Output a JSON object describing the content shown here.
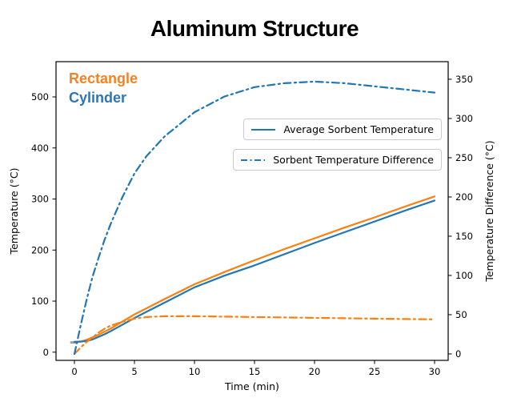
{
  "title": "Aluminum Structure",
  "annotations": {
    "rectangle": {
      "label": "Rectangle",
      "color": "#f58220"
    },
    "cylinder": {
      "label": "Cylinder",
      "color": "#2e75b6"
    }
  },
  "legend": {
    "items": [
      {
        "label": "Average Sorbent Temperature",
        "line_style": "solid",
        "color": "#1f77b4"
      },
      {
        "label": "Sorbent Temperature Difference",
        "line_style": "dashdot",
        "color": "#1f77b4"
      }
    ]
  },
  "chart_data": {
    "type": "line",
    "title": "Aluminum Structure",
    "xlabel": "Time (min)",
    "ylabel_left": "Temperature (°C)",
    "ylabel_right": "Temperature Difference (°C)",
    "x_ticks": [
      0,
      5,
      10,
      15,
      20,
      25,
      30
    ],
    "y_left_ticks": [
      0,
      100,
      200,
      300,
      400,
      500
    ],
    "y_right_ticks": [
      0,
      50,
      100,
      150,
      200,
      250,
      300,
      350
    ],
    "xlim": [
      -1.533,
      31.133
    ],
    "ylim_left": [
      -16,
      569
    ],
    "ylim_right": [
      -8.2,
      372.4
    ],
    "grid": false,
    "legend_position": "upper right area, two separate boxes",
    "x": [
      0,
      0.5,
      1,
      1.5,
      2,
      2.5,
      3,
      4,
      5,
      6,
      7.5,
      10,
      12.5,
      15,
      17.5,
      20,
      22.5,
      25,
      27.5,
      30
    ],
    "series": [
      {
        "name": "Rectangle Average Sorbent Temperature",
        "axis": "left",
        "style": "solid",
        "color": "#ff7f0e",
        "values": [
          20,
          21,
          24,
          29,
          34,
          40,
          46,
          60,
          74,
          86,
          104,
          133,
          157,
          180,
          202,
          223,
          244,
          264,
          285,
          305
        ]
      },
      {
        "name": "Cylinder Average Sorbent Temperature",
        "axis": "left",
        "style": "solid",
        "color": "#1f77b4",
        "values": [
          20,
          20.5,
          22,
          25,
          30,
          35,
          41,
          54,
          67,
          79,
          97,
          127,
          150,
          170,
          192,
          214,
          235,
          256,
          277,
          297
        ]
      },
      {
        "name": "Rectangle Sorbent Temperature Difference",
        "axis": "right",
        "style": "dashdot",
        "color": "#ff7f0e",
        "values": [
          0,
          8,
          15,
          21,
          27,
          32,
          36,
          41,
          45,
          47,
          48,
          48,
          47.5,
          47,
          46.5,
          46,
          45.5,
          45,
          44.5,
          44
        ]
      },
      {
        "name": "Cylinder Sorbent Temperature Difference",
        "axis": "right",
        "style": "dashdot",
        "color": "#1f77b4",
        "values": [
          0,
          35,
          68,
          98,
          122,
          145,
          165,
          200,
          230,
          252,
          277,
          308,
          328,
          340,
          345,
          347,
          345,
          341,
          337,
          333
        ]
      }
    ],
    "start_marker": {
      "color": "#9e9e9e",
      "t": [
        -0.35,
        0.3
      ],
      "value": 19,
      "axis": "left"
    }
  }
}
